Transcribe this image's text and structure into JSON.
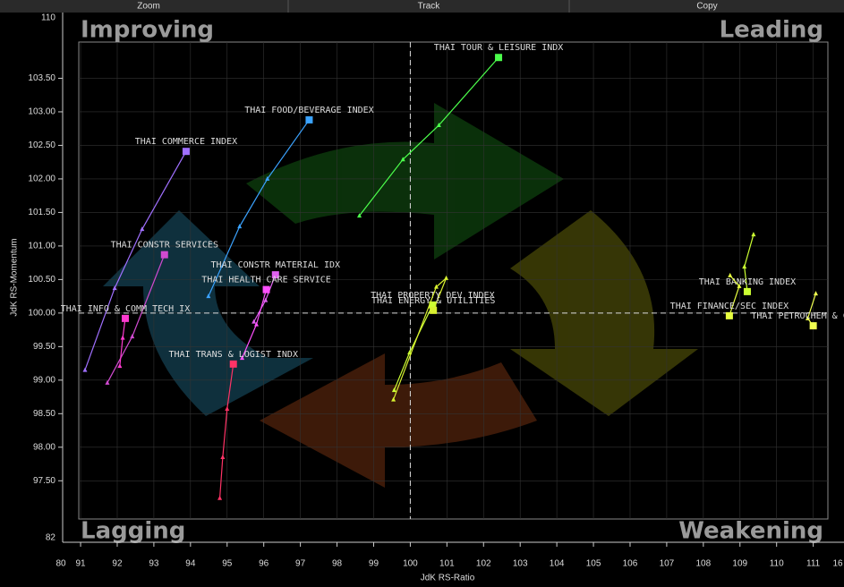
{
  "toolbar": [
    "Zoom",
    "Track",
    "Copy"
  ],
  "chart_data": {
    "type": "rrg",
    "x_label": "JdK RS-Ratio",
    "y_label": "JdK RS-Momentum",
    "quadrants": [
      "Improving",
      "Leading",
      "Lagging",
      "Weakening"
    ],
    "axis_break_labels": {
      "x_left": 80,
      "x_right": 16,
      "y_top": 110,
      "y_bottom": 82
    },
    "xlim": [
      90.95,
      111.4
    ],
    "ylim": [
      96.93,
      104.04
    ],
    "xticks": [
      91,
      92,
      93,
      94,
      95,
      96,
      97,
      98,
      99,
      100,
      101,
      102,
      103,
      104,
      105,
      106,
      107,
      108,
      109,
      110,
      111
    ],
    "yticks": [
      {
        "value": 97.5,
        "label": "97.50"
      },
      {
        "value": 98,
        "label": "98.00"
      },
      {
        "value": 98.5,
        "label": "98.50"
      },
      {
        "value": 99,
        "label": "99.00"
      },
      {
        "value": 99.5,
        "label": "99.50"
      },
      {
        "value": 100,
        "label": "100.00"
      },
      {
        "value": 100.5,
        "label": "100.50"
      },
      {
        "value": 101,
        "label": "101.00"
      },
      {
        "value": 101.5,
        "label": "101.50"
      },
      {
        "value": 102,
        "label": "102.00"
      },
      {
        "value": 102.5,
        "label": "102.50"
      },
      {
        "value": 103,
        "label": "103.00"
      },
      {
        "value": 103.5,
        "label": "103.50"
      }
    ],
    "grid": true,
    "center": {
      "x": 100,
      "y": 100
    },
    "series": [
      {
        "name": "THAI TOUR & LEISURE INDX",
        "color": "#4cff4c",
        "x": [
          98.61,
          99.8,
          100.78,
          102.41
        ],
        "y": [
          101.45,
          102.29,
          102.8,
          103.81
        ]
      },
      {
        "name": "THAI FOOD/BEVERAGE INDEX",
        "color": "#3ba3ff",
        "x": [
          94.49,
          95.34,
          96.1,
          97.24
        ],
        "y": [
          100.25,
          101.29,
          102.0,
          102.88
        ]
      },
      {
        "name": "THAI COMMERCE INDEX",
        "color": "#a070ff",
        "x": [
          91.12,
          91.93,
          92.68,
          93.88
        ],
        "y": [
          99.15,
          100.37,
          101.25,
          102.41
        ]
      },
      {
        "name": "THAI CONSTR SERVICES",
        "color": "#d04ad0",
        "x": [
          91.73,
          92.41,
          93.29
        ],
        "y": [
          98.96,
          99.65,
          100.87
        ]
      },
      {
        "name": "THAI CONSTR MATERIAL IDX",
        "color": "#e060f0",
        "x": [
          95.73,
          96.05,
          96.32
        ],
        "y": [
          99.87,
          100.19,
          100.57
        ]
      },
      {
        "name": "THAI HEALTH CARE SERVICE",
        "color": "#ff50ff",
        "x": [
          95.41,
          95.8,
          96.07
        ],
        "y": [
          99.33,
          99.83,
          100.35
        ]
      },
      {
        "name": "THAI INFO & COMM TECH IX",
        "color": "#ff3ad0",
        "x": [
          92.07,
          92.15,
          92.22
        ],
        "y": [
          99.21,
          99.63,
          99.92
        ]
      },
      {
        "name": "THAI TRANS & LOGIST INDX",
        "color": "#ff3366",
        "x": [
          94.8,
          94.88,
          95.0,
          95.17
        ],
        "y": [
          97.24,
          97.85,
          98.57,
          99.24
        ]
      },
      {
        "name": "THAI PROPERTY DEV INDEX",
        "color": "#ccff33",
        "x": [
          99.56,
          99.98,
          100.61
        ],
        "y": [
          98.85,
          99.41,
          100.12
        ]
      },
      {
        "name": "THAI ENERGY & UTILITIES",
        "color": "#d8f030",
        "x": [
          99.54,
          100.71,
          100.98,
          100.63
        ],
        "y": [
          98.71,
          100.39,
          100.52,
          100.04
        ]
      },
      {
        "name": "THAI BANKING INDEX",
        "color": "#ccff33",
        "x": [
          109.37,
          109.12,
          109.2
        ],
        "y": [
          101.17,
          100.69,
          100.32
        ]
      },
      {
        "name": "THAI FINANCE/SEC INDEX",
        "color": "#e8ff40",
        "x": [
          108.73,
          108.98,
          108.71
        ],
        "y": [
          100.56,
          100.4,
          99.96
        ]
      },
      {
        "name": "THAI PETROCHEM & CHEM I",
        "color": "#f0ff50",
        "x": [
          111.07,
          110.85,
          111.0
        ],
        "y": [
          100.29,
          99.92,
          99.81
        ]
      }
    ]
  }
}
